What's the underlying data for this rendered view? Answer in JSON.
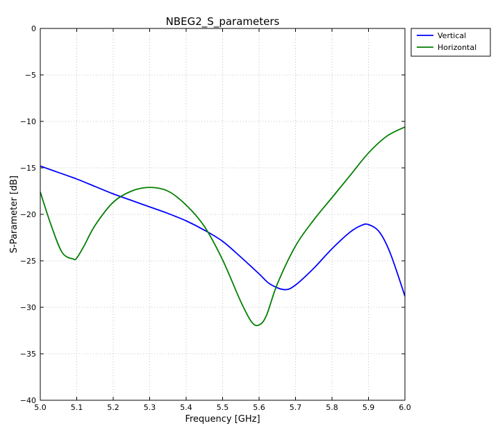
{
  "chart_data": {
    "type": "line",
    "title": "NBEG2_S_parameters",
    "xlabel": "Frequency [GHz]",
    "ylabel": "S-Parameter [dB]",
    "xlim": [
      5.0,
      6.0
    ],
    "ylim": [
      -40,
      0
    ],
    "xticks": [
      "5.0",
      "5.1",
      "5.2",
      "5.3",
      "5.4",
      "5.5",
      "5.6",
      "5.7",
      "5.8",
      "5.9",
      "6.0"
    ],
    "yticks": [
      "0",
      "−5",
      "−10",
      "−15",
      "−20",
      "−25",
      "−30",
      "−35",
      "−40"
    ],
    "grid": true,
    "legend_position": "outside-top-right",
    "series": [
      {
        "name": "Vertical",
        "color": "#0000ff",
        "x": [
          5.0,
          5.05,
          5.1,
          5.15,
          5.2,
          5.25,
          5.3,
          5.35,
          5.4,
          5.45,
          5.5,
          5.55,
          5.6,
          5.63,
          5.67,
          5.7,
          5.75,
          5.8,
          5.85,
          5.88,
          5.9,
          5.93,
          5.96,
          6.0
        ],
        "y": [
          -14.8,
          -15.5,
          -16.2,
          -17.0,
          -17.8,
          -18.5,
          -19.2,
          -19.9,
          -20.7,
          -21.7,
          -22.9,
          -24.6,
          -26.4,
          -27.5,
          -28.1,
          -27.6,
          -25.8,
          -23.7,
          -21.9,
          -21.2,
          -21.1,
          -21.9,
          -24.2,
          -28.8
        ]
      },
      {
        "name": "Horizontal",
        "color": "#007f00",
        "x": [
          5.0,
          5.03,
          5.06,
          5.09,
          5.1,
          5.12,
          5.15,
          5.2,
          5.25,
          5.3,
          5.35,
          5.4,
          5.45,
          5.5,
          5.55,
          5.58,
          5.6,
          5.62,
          5.65,
          5.7,
          5.75,
          5.8,
          5.85,
          5.9,
          5.95,
          6.0
        ],
        "y": [
          -17.6,
          -21.2,
          -24.1,
          -24.8,
          -24.7,
          -23.4,
          -21.2,
          -18.7,
          -17.5,
          -17.1,
          -17.5,
          -19.0,
          -21.3,
          -24.9,
          -29.4,
          -31.6,
          -31.9,
          -30.9,
          -27.5,
          -23.4,
          -20.6,
          -18.2,
          -15.8,
          -13.4,
          -11.6,
          -10.6
        ]
      }
    ]
  }
}
